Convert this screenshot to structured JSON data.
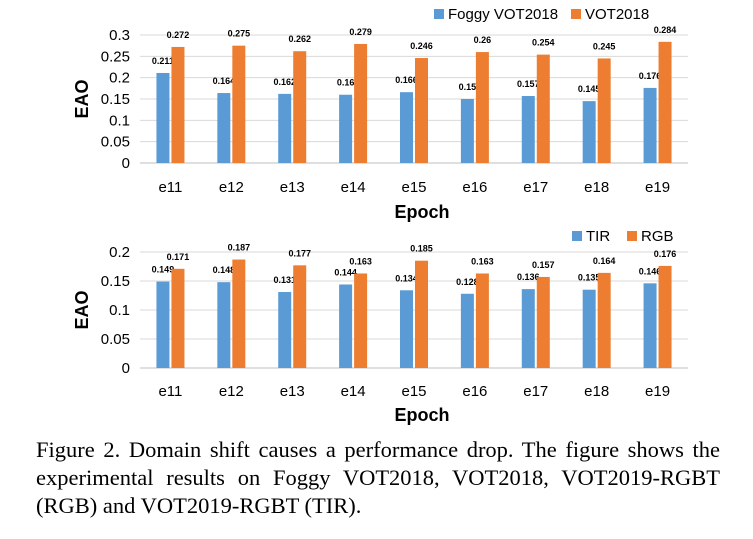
{
  "colors": {
    "blue": "#5B9BD5",
    "orange": "#ED7D31",
    "grid": "#D9D9D9",
    "axis": "#BFBFBF"
  },
  "chart_data": [
    {
      "type": "bar",
      "categories": [
        "e11",
        "e12",
        "e13",
        "e14",
        "e15",
        "e16",
        "e17",
        "e18",
        "e19"
      ],
      "series": [
        {
          "name": "Foggy VOT2018",
          "values": [
            0.211,
            0.164,
            0.162,
            0.16,
            0.166,
            0.15,
            0.157,
            0.145,
            0.176
          ]
        },
        {
          "name": "VOT2018",
          "values": [
            0.272,
            0.275,
            0.262,
            0.279,
            0.246,
            0.26,
            0.254,
            0.245,
            0.284
          ]
        }
      ],
      "data_labels": [
        [
          "0.211",
          "0.164",
          "0.162",
          "0.16",
          "0.166",
          "0.15",
          "0.157",
          "0.145",
          "0.176"
        ],
        [
          "0.272",
          "0.275",
          "0.262",
          "0.279",
          "0.246",
          "0.26",
          "0.254",
          "0.245",
          "0.284"
        ]
      ],
      "yticks": [
        "0",
        "0.05",
        "0.1",
        "0.15",
        "0.2",
        "0.25",
        "0.3"
      ],
      "ylim": [
        0,
        0.3
      ],
      "xlabel": "Epoch",
      "ylabel": "EAO",
      "grid": true,
      "legend": "top-right"
    },
    {
      "type": "bar",
      "categories": [
        "e11",
        "e12",
        "e13",
        "e14",
        "e15",
        "e16",
        "e17",
        "e18",
        "e19"
      ],
      "series": [
        {
          "name": "TIR",
          "values": [
            0.149,
            0.148,
            0.131,
            0.144,
            0.134,
            0.128,
            0.136,
            0.135,
            0.146
          ]
        },
        {
          "name": "RGB",
          "values": [
            0.171,
            0.187,
            0.177,
            0.163,
            0.185,
            0.163,
            0.157,
            0.164,
            0.176
          ]
        }
      ],
      "data_labels": [
        [
          "0.149",
          "0.148",
          "0.131",
          "0.144",
          "0.134",
          "0.128",
          "0.136",
          "0.135",
          "0.146"
        ],
        [
          "0.171",
          "0.187",
          "0.177",
          "0.163",
          "0.185",
          "0.163",
          "0.157",
          "0.164",
          "0.176"
        ]
      ],
      "yticks": [
        "0",
        "0.05",
        "0.1",
        "0.15",
        "0.2"
      ],
      "ylim": [
        0,
        0.2
      ],
      "xlabel": "Epoch",
      "ylabel": "EAO",
      "grid": true,
      "legend": "top-right"
    }
  ],
  "caption": "Figure 2. Domain shift causes a performance drop.  The figure shows the experimental results on Foggy VOT2018, VOT2018, VOT2019-RGBT (RGB) and VOT2019-RGBT (TIR)."
}
